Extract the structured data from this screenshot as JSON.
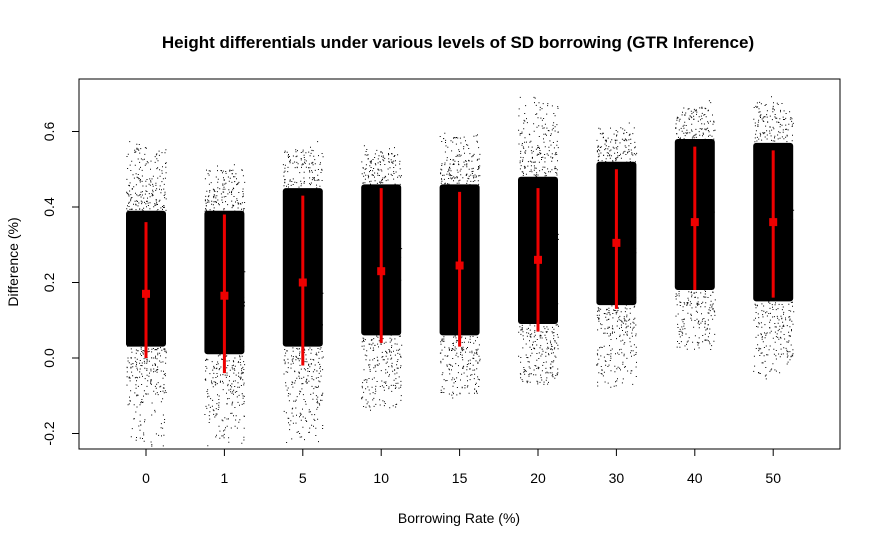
{
  "chart_data": {
    "type": "scatter",
    "title": "Height differentials under various levels of SD borrowing (GTR Inference)",
    "xlabel": "Borrowing Rate (%)",
    "ylabel": "Difference (%)",
    "categories": [
      "0",
      "1",
      "5",
      "10",
      "15",
      "20",
      "30",
      "40",
      "50"
    ],
    "yticks": [
      "-0.2",
      "0.0",
      "0.2",
      "0.4",
      "0.6"
    ],
    "ylim": [
      -0.24,
      0.72
    ],
    "grid": false,
    "legend": "none",
    "colors": {
      "points": "#000000",
      "summary": "#ee0000"
    },
    "point_ranges": [
      {
        "category": "0",
        "min": -0.22,
        "max": 0.56,
        "core_low": 0.03,
        "core_high": 0.39
      },
      {
        "category": "1",
        "min": -0.22,
        "max": 0.5,
        "core_low": 0.01,
        "core_high": 0.39
      },
      {
        "category": "5",
        "min": -0.21,
        "max": 0.56,
        "core_low": 0.03,
        "core_high": 0.45
      },
      {
        "category": "10",
        "min": -0.13,
        "max": 0.55,
        "core_low": 0.06,
        "core_high": 0.46
      },
      {
        "category": "15",
        "min": -0.1,
        "max": 0.59,
        "core_low": 0.06,
        "core_high": 0.46
      },
      {
        "category": "20",
        "min": -0.07,
        "max": 0.68,
        "core_low": 0.09,
        "core_high": 0.48
      },
      {
        "category": "30",
        "min": -0.07,
        "max": 0.61,
        "core_low": 0.14,
        "core_high": 0.52
      },
      {
        "category": "40",
        "min": 0.03,
        "max": 0.67,
        "core_low": 0.18,
        "core_high": 0.58
      },
      {
        "category": "50",
        "min": -0.04,
        "max": 0.68,
        "core_low": 0.15,
        "core_high": 0.57
      }
    ],
    "summary": [
      {
        "category": "0",
        "mean": 0.17,
        "lower": 0.0,
        "upper": 0.36
      },
      {
        "category": "1",
        "mean": 0.165,
        "lower": -0.04,
        "upper": 0.38
      },
      {
        "category": "5",
        "mean": 0.2,
        "lower": -0.02,
        "upper": 0.43
      },
      {
        "category": "10",
        "mean": 0.23,
        "lower": 0.04,
        "upper": 0.45
      },
      {
        "category": "15",
        "mean": 0.245,
        "lower": 0.03,
        "upper": 0.44
      },
      {
        "category": "20",
        "mean": 0.26,
        "lower": 0.07,
        "upper": 0.45
      },
      {
        "category": "30",
        "mean": 0.305,
        "lower": 0.13,
        "upper": 0.5
      },
      {
        "category": "40",
        "mean": 0.36,
        "lower": 0.18,
        "upper": 0.56
      },
      {
        "category": "50",
        "mean": 0.36,
        "lower": 0.16,
        "upper": 0.55
      }
    ]
  }
}
